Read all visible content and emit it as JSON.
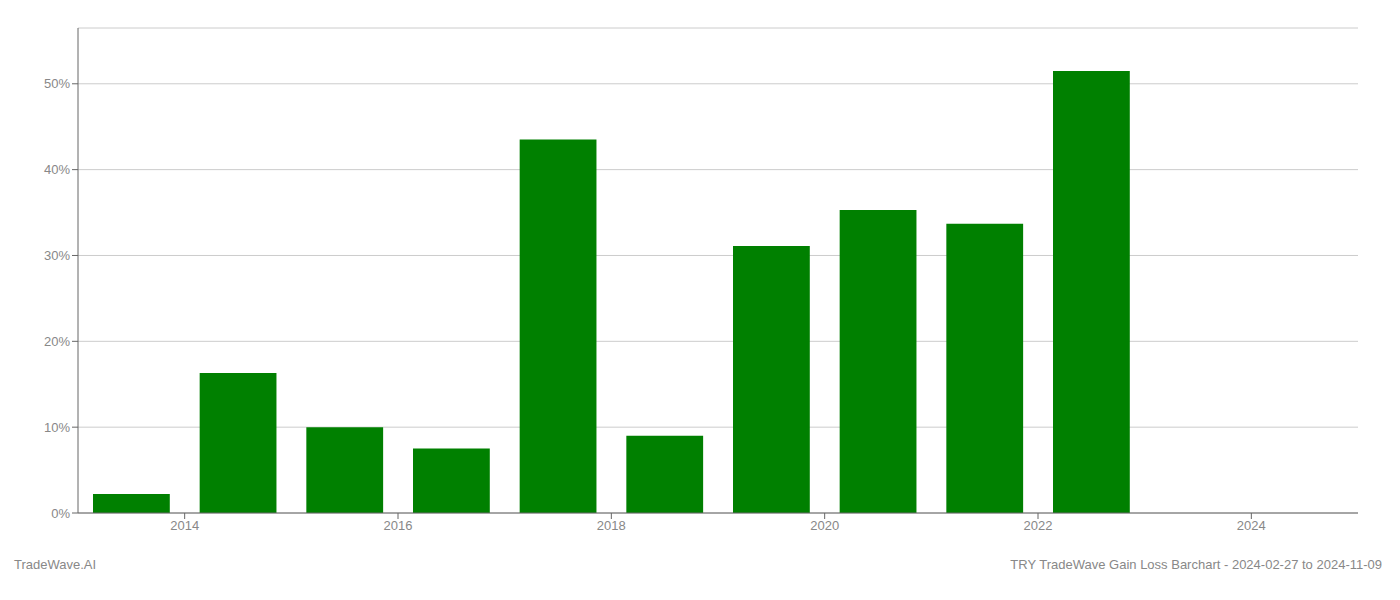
{
  "chart_data": {
    "type": "bar",
    "x": [
      2013.5,
      2014.5,
      2015.5,
      2016.5,
      2017.5,
      2018.5,
      2019.5,
      2020.5,
      2021.5,
      2022.5,
      2023.5
    ],
    "values": [
      0.022,
      0.163,
      0.1,
      0.075,
      0.435,
      0.09,
      0.311,
      0.353,
      0.337,
      0.515,
      0.0
    ],
    "color": "#008000",
    "xlim": [
      2013.0,
      2025.0
    ],
    "ylim": [
      0,
      0.565
    ],
    "xticks": [
      2014,
      2016,
      2018,
      2020,
      2022,
      2024
    ],
    "yticks": [
      {
        "value": 0.0,
        "label": "0%"
      },
      {
        "value": 0.1,
        "label": "10%"
      },
      {
        "value": 0.2,
        "label": "20%"
      },
      {
        "value": 0.3,
        "label": "30%"
      },
      {
        "value": 0.4,
        "label": "40%"
      },
      {
        "value": 0.5,
        "label": "50%"
      }
    ],
    "grid": true,
    "annotations": [
      "TradeWave.AI",
      "TRY TradeWave Gain Loss Barchart - 2024-02-27 to 2024-11-09"
    ]
  }
}
